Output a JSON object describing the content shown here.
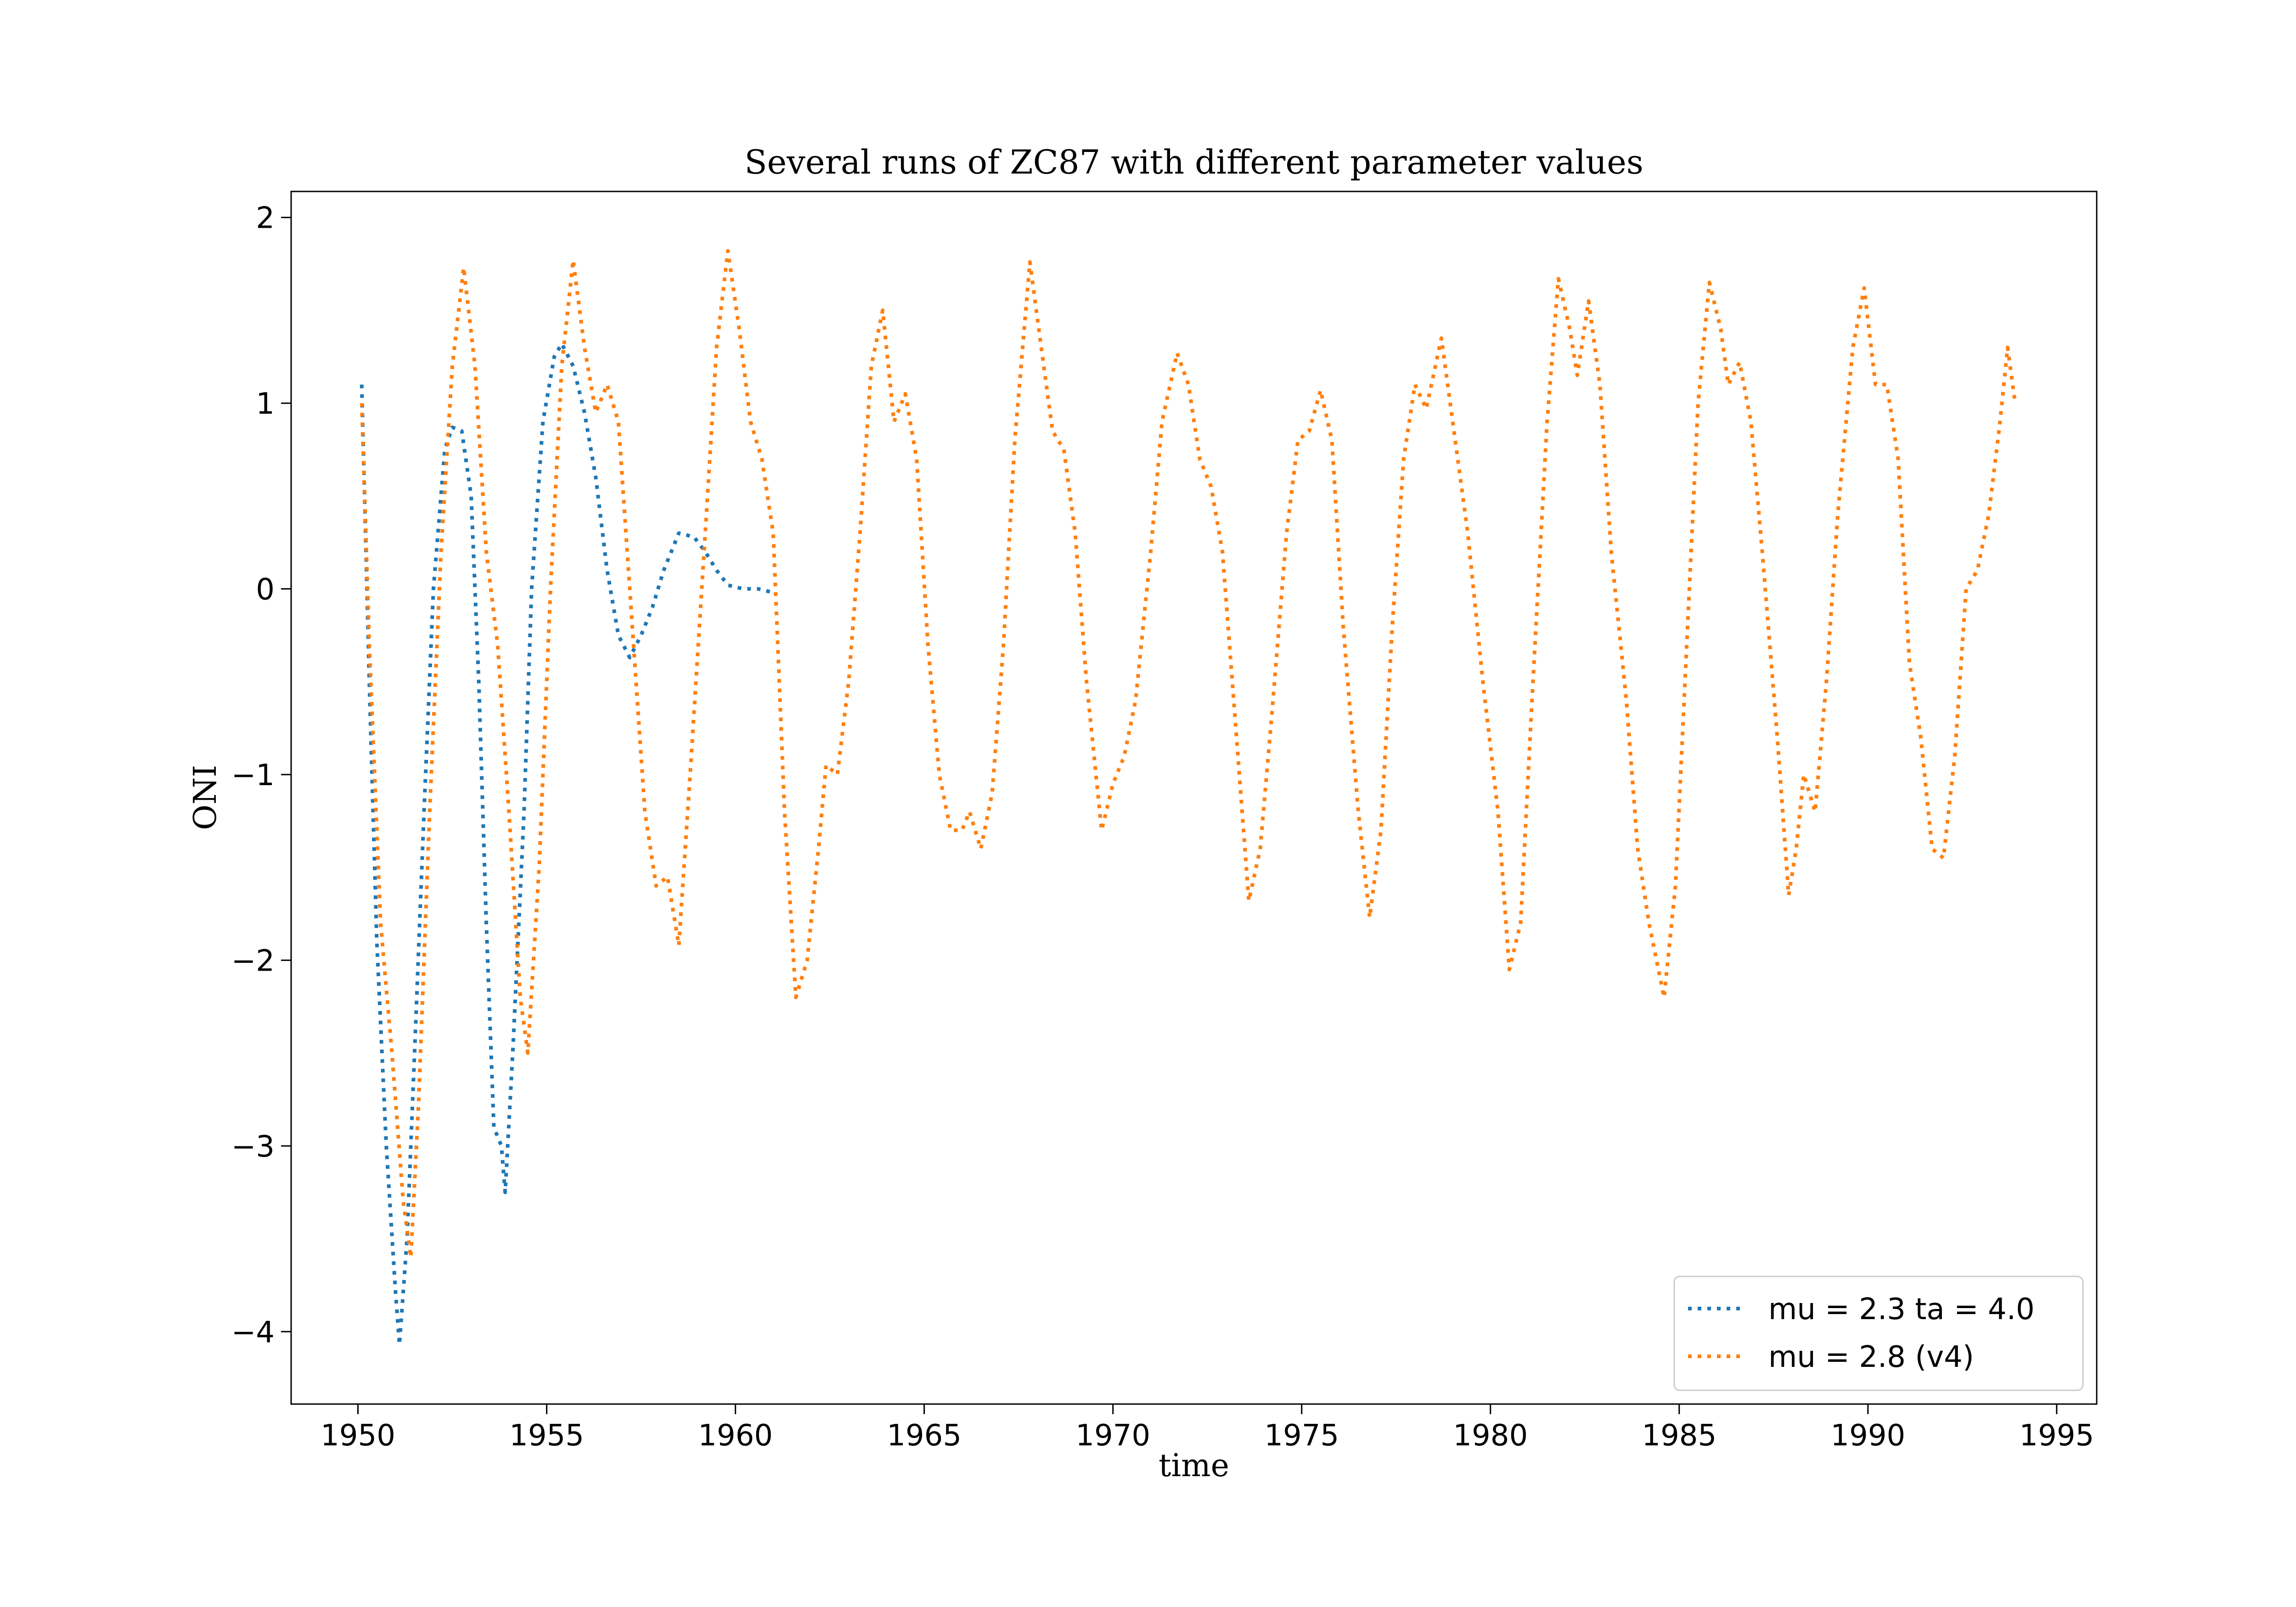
{
  "chart_data": {
    "type": "line",
    "title": "Several runs of ZC87 with different parameter values",
    "x_label": "time",
    "y_label": "ONI",
    "xlim": [
      1948.23,
      1996.06
    ],
    "ylim": [
      -4.39,
      2.14
    ],
    "xticks": [
      1950,
      1955,
      1960,
      1965,
      1970,
      1975,
      1980,
      1985,
      1990,
      1995
    ],
    "yticks": [
      {
        "value": -4,
        "label": "−4"
      },
      {
        "value": -3,
        "label": "−3"
      },
      {
        "value": -2,
        "label": "−2"
      },
      {
        "value": -1,
        "label": "−1"
      },
      0,
      1,
      2
    ],
    "grid": false,
    "legend": "lower right",
    "series": [
      {
        "name": "mu = 2.3 ta = 4.0",
        "color": "#1f77b4",
        "x": [
          1950.1,
          1950.3,
          1950.5,
          1950.75,
          1951.0,
          1951.1,
          1951.3,
          1951.5,
          1951.75,
          1952.0,
          1952.3,
          1952.5,
          1952.75,
          1953.0,
          1953.2,
          1953.4,
          1953.6,
          1953.8,
          1953.9,
          1954.1,
          1954.4,
          1954.6,
          1954.9,
          1955.2,
          1955.4,
          1955.7,
          1956.0,
          1956.3,
          1956.6,
          1956.9,
          1957.2,
          1957.5,
          1957.8,
          1958.1,
          1958.5,
          1958.9,
          1959.2,
          1959.5,
          1959.8,
          1960.2,
          1960.6,
          1961.0
        ],
        "values": [
          1.1,
          -0.5,
          -1.9,
          -3.0,
          -3.8,
          -4.07,
          -3.5,
          -2.5,
          -1.2,
          0.0,
          0.75,
          0.87,
          0.85,
          0.5,
          -0.5,
          -1.8,
          -2.9,
          -3.0,
          -3.25,
          -2.5,
          -1.2,
          0.0,
          0.9,
          1.25,
          1.32,
          1.2,
          0.95,
          0.6,
          0.1,
          -0.25,
          -0.37,
          -0.25,
          -0.1,
          0.1,
          0.3,
          0.28,
          0.2,
          0.1,
          0.02,
          0.0,
          0.0,
          -0.02
        ]
      },
      {
        "name": "mu = 2.8 (v4)",
        "color": "#ff7f0e",
        "x": [
          1950.1,
          1950.3,
          1950.6,
          1950.9,
          1951.2,
          1951.4,
          1951.6,
          1951.9,
          1952.2,
          1952.5,
          1952.8,
          1953.1,
          1953.4,
          1953.7,
          1954.0,
          1954.3,
          1954.5,
          1954.8,
          1955.1,
          1955.4,
          1955.7,
          1956.0,
          1956.3,
          1956.6,
          1956.9,
          1957.2,
          1957.6,
          1957.9,
          1958.2,
          1958.5,
          1958.8,
          1959.2,
          1959.5,
          1959.8,
          1960.1,
          1960.4,
          1960.7,
          1961.0,
          1961.3,
          1961.6,
          1961.9,
          1962.2,
          1962.4,
          1962.7,
          1963.0,
          1963.3,
          1963.6,
          1963.9,
          1964.2,
          1964.5,
          1964.8,
          1965.1,
          1965.4,
          1965.7,
          1966.0,
          1966.2,
          1966.5,
          1966.8,
          1967.1,
          1967.4,
          1967.8,
          1968.1,
          1968.4,
          1968.7,
          1969.0,
          1969.3,
          1969.7,
          1970.0,
          1970.3,
          1970.6,
          1971.0,
          1971.3,
          1971.7,
          1972.0,
          1972.3,
          1972.6,
          1972.9,
          1973.2,
          1973.6,
          1973.9,
          1974.2,
          1974.6,
          1974.9,
          1975.2,
          1975.5,
          1975.8,
          1976.1,
          1976.5,
          1976.8,
          1977.1,
          1977.4,
          1977.7,
          1978.0,
          1978.3,
          1978.7,
          1979.0,
          1979.4,
          1979.8,
          1980.2,
          1980.5,
          1980.8,
          1981.1,
          1981.5,
          1981.8,
          1982.1,
          1982.3,
          1982.6,
          1982.9,
          1983.2,
          1983.6,
          1983.9,
          1984.2,
          1984.6,
          1984.9,
          1985.2,
          1985.5,
          1985.8,
          1986.1,
          1986.3,
          1986.6,
          1986.9,
          1987.2,
          1987.6,
          1987.9,
          1988.1,
          1988.3,
          1988.6,
          1988.9,
          1989.2,
          1989.6,
          1989.9,
          1990.2,
          1990.5,
          1990.8,
          1991.1,
          1991.4,
          1991.7,
          1992.0,
          1992.3,
          1992.6,
          1992.9,
          1993.2,
          1993.5,
          1993.7,
          1993.9
        ],
        "values": [
          1.0,
          -0.3,
          -1.8,
          -2.5,
          -3.3,
          -3.6,
          -2.8,
          -1.2,
          0.2,
          1.2,
          1.73,
          1.2,
          0.2,
          -0.3,
          -1.2,
          -2.2,
          -2.5,
          -1.5,
          0.0,
          1.2,
          1.77,
          1.3,
          0.95,
          1.1,
          0.9,
          0.0,
          -1.2,
          -1.6,
          -1.55,
          -1.92,
          -1.0,
          0.3,
          1.3,
          1.82,
          1.4,
          0.9,
          0.7,
          0.3,
          -1.2,
          -2.2,
          -2.0,
          -1.4,
          -0.95,
          -1.0,
          -0.5,
          0.3,
          1.2,
          1.5,
          0.9,
          1.05,
          0.7,
          -0.3,
          -1.0,
          -1.3,
          -1.3,
          -1.2,
          -1.4,
          -1.1,
          -0.3,
          0.8,
          1.76,
          1.3,
          0.85,
          0.75,
          0.3,
          -0.5,
          -1.3,
          -1.05,
          -0.9,
          -0.6,
          0.2,
          0.9,
          1.27,
          1.1,
          0.7,
          0.55,
          0.2,
          -0.6,
          -1.68,
          -1.4,
          -0.7,
          0.3,
          0.8,
          0.85,
          1.07,
          0.8,
          -0.2,
          -1.2,
          -1.77,
          -1.3,
          -0.2,
          0.7,
          1.1,
          0.97,
          1.35,
          0.9,
          0.3,
          -0.5,
          -1.2,
          -2.05,
          -1.8,
          -0.6,
          0.9,
          1.67,
          1.4,
          1.15,
          1.55,
          1.1,
          0.2,
          -0.6,
          -1.4,
          -1.8,
          -2.2,
          -1.6,
          -0.3,
          1.0,
          1.65,
          1.4,
          1.1,
          1.22,
          0.9,
          0.2,
          -0.8,
          -1.65,
          -1.4,
          -1.0,
          -1.2,
          -0.5,
          0.4,
          1.3,
          1.62,
          1.1,
          1.1,
          0.7,
          -0.4,
          -0.8,
          -1.4,
          -1.45,
          -0.9,
          0.0,
          0.1,
          0.4,
          0.9,
          1.3,
          1.0
        ]
      }
    ]
  }
}
